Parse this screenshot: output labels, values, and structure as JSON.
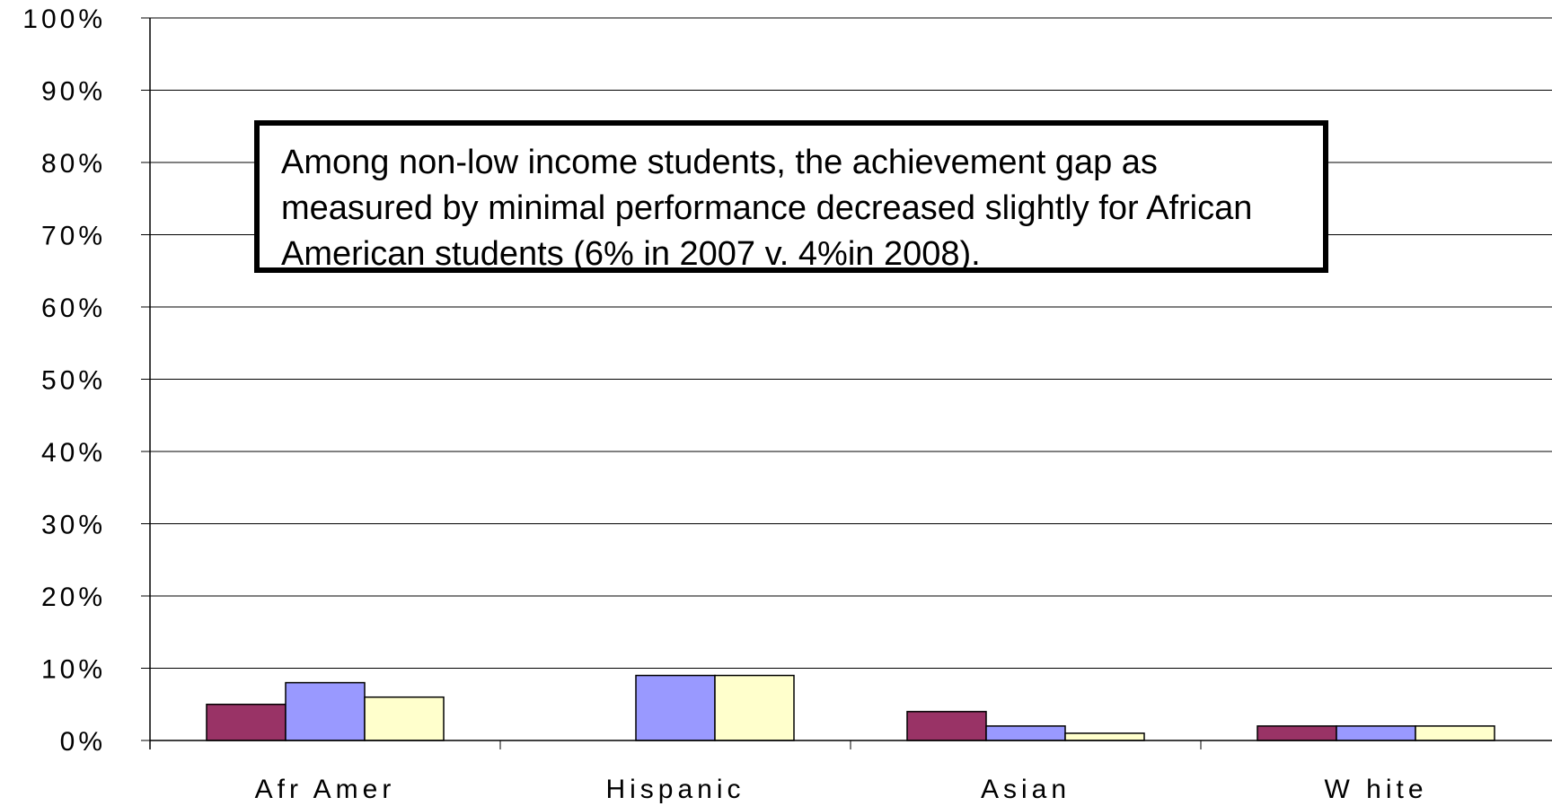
{
  "chart_data": {
    "type": "bar",
    "categories": [
      "Afr Amer",
      "Hispanic",
      "Asian",
      "W hite"
    ],
    "series": [
      {
        "values": [
          5,
          0,
          4,
          2
        ],
        "color": "#993366"
      },
      {
        "values": [
          8,
          9,
          2,
          2
        ],
        "color": "#9999ff"
      },
      {
        "values": [
          6,
          9,
          1,
          2
        ],
        "color": "#ffffcc"
      }
    ],
    "ylim": [
      0,
      100
    ],
    "yticks": [
      "0%",
      "10%",
      "20%",
      "30%",
      "40%",
      "50%",
      "60%",
      "70%",
      "80%",
      "90%",
      "100%"
    ],
    "grid": true,
    "annotation": "Among non-low income students, the achievement gap as measured by minimal performance decreased slightly for African American students (6% in 2007 v. 4%in 2008)."
  }
}
